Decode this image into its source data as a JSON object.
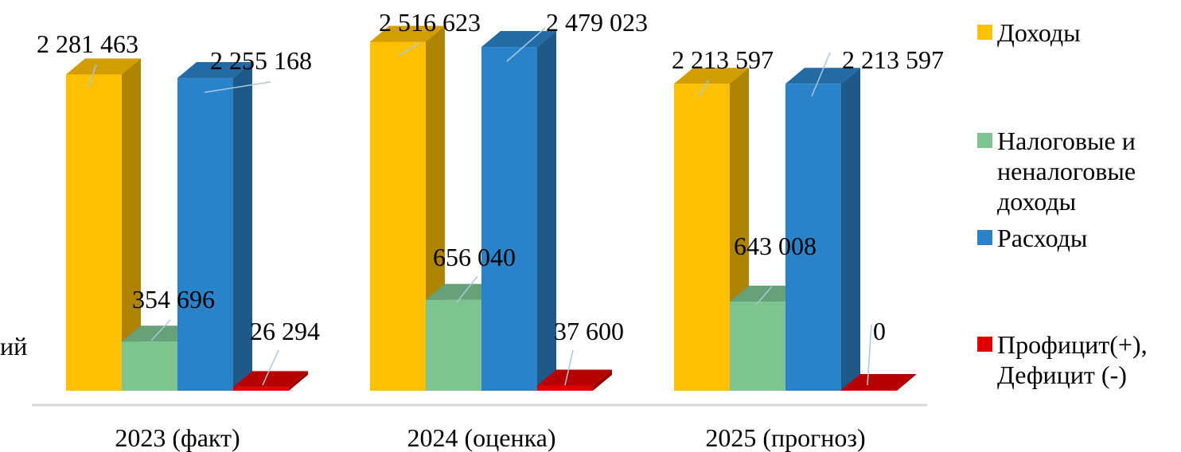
{
  "chart_data": {
    "type": "bar",
    "categories": [
      "2023 (факт)",
      "2024 (оценка)",
      "2025 (прогноз)"
    ],
    "series": [
      {
        "name": "Доходы",
        "values": [
          2281463,
          2516623,
          2213597
        ],
        "labels": [
          "2 281 463",
          "2 516 623",
          "2 213 597"
        ],
        "color": "#FFC000"
      },
      {
        "name": "Налоговые и неналоговые доходы",
        "values": [
          354696,
          656040,
          643008
        ],
        "labels": [
          "354 696",
          "656 040",
          "643 008"
        ],
        "color": "#7DC491"
      },
      {
        "name": "Расходы",
        "values": [
          2255168,
          2479023,
          2213597
        ],
        "labels": [
          "2 255 168",
          "2 479 023",
          "2 213 597"
        ],
        "color": "#2A83C9"
      },
      {
        "name": "Профицит(+), Дефицит (-)",
        "values": [
          26294,
          37600,
          0
        ],
        "labels": [
          "26 294",
          "37 600",
          "0"
        ],
        "color": "#E00000"
      }
    ],
    "ylim": [
      0,
      2600000
    ],
    "bar_style": "3d-column",
    "legend_position": "right",
    "grid": false
  },
  "legend": [
    {
      "text": "Доходы",
      "color": "#FFC000"
    },
    {
      "text": "Налоговые и\nненалоговые\nдоходы",
      "color": "#7DC491"
    },
    {
      "text": "Расходы",
      "color": "#2A83C9"
    },
    {
      "text": "Профицит(+),\nДефицит (-)",
      "color": "#E00000"
    }
  ],
  "edge_text": "ий"
}
